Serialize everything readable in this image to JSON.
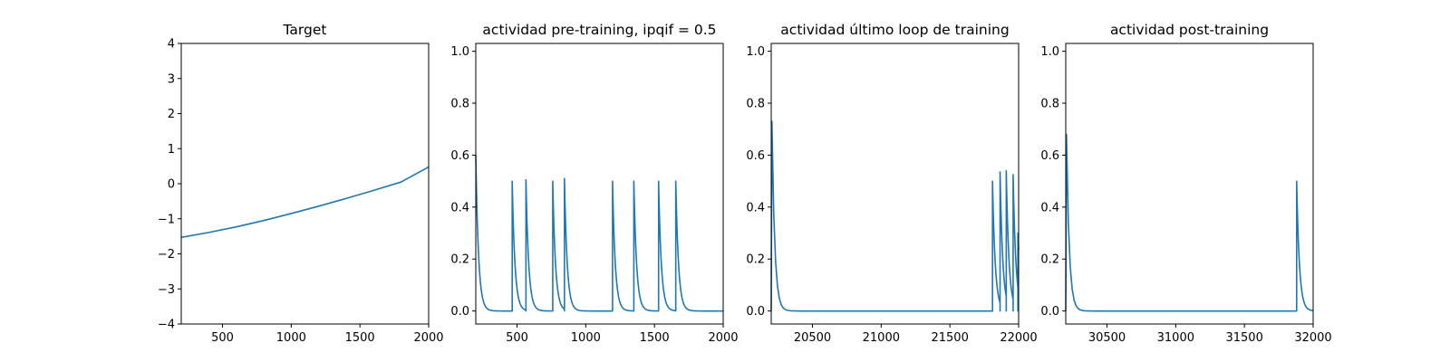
{
  "figure": {
    "line_color": "#1f77b4"
  },
  "chart_data": [
    {
      "type": "line",
      "title": "Target",
      "xlim": [
        200,
        2000
      ],
      "ylim": [
        -4,
        4
      ],
      "xticks": [
        500,
        1000,
        1500,
        2000
      ],
      "yticks": [
        -4,
        -3,
        -2,
        -1,
        0,
        1,
        2,
        3,
        4
      ],
      "x": [
        200,
        400,
        600,
        800,
        1000,
        1200,
        1400,
        1600,
        1800,
        2000
      ],
      "y": [
        -1.53,
        -1.39,
        -1.23,
        -1.05,
        -0.85,
        -0.64,
        -0.42,
        -0.19,
        0.05,
        0.48
      ]
    },
    {
      "type": "line",
      "title": "actividad pre-training, ipqif = 0.5",
      "xlim": [
        200,
        2000
      ],
      "ylim": [
        -0.05,
        1.03
      ],
      "xticks": [
        500,
        1000,
        1500,
        2000
      ],
      "yticks": [
        0.0,
        0.2,
        0.4,
        0.6,
        0.8,
        1.0
      ],
      "spikes": [
        {
          "x": 200,
          "y": 0.6
        },
        {
          "x": 465,
          "y": 0.5
        },
        {
          "x": 565,
          "y": 0.505
        },
        {
          "x": 760,
          "y": 0.5
        },
        {
          "x": 845,
          "y": 0.51
        },
        {
          "x": 1195,
          "y": 0.5
        },
        {
          "x": 1350,
          "y": 0.5
        },
        {
          "x": 1530,
          "y": 0.5
        },
        {
          "x": 1655,
          "y": 0.5
        }
      ],
      "decay_tau": 20
    },
    {
      "type": "line",
      "title": "actividad último loop de training",
      "xlim": [
        20200,
        22000
      ],
      "ylim": [
        -0.05,
        1.03
      ],
      "xticks": [
        20500,
        21000,
        21500,
        22000
      ],
      "yticks": [
        0.0,
        0.2,
        0.4,
        0.6,
        0.8,
        1.0
      ],
      "spikes": [
        {
          "x": 20205,
          "y": 0.73
        },
        {
          "x": 21810,
          "y": 0.5
        },
        {
          "x": 21865,
          "y": 0.535
        },
        {
          "x": 21910,
          "y": 0.54
        },
        {
          "x": 21960,
          "y": 0.525
        },
        {
          "x": 21995,
          "y": 0.3
        }
      ],
      "decay_tau": 20
    },
    {
      "type": "line",
      "title": "actividad post-training",
      "xlim": [
        30200,
        32000
      ],
      "ylim": [
        -0.05,
        1.03
      ],
      "xticks": [
        30500,
        31000,
        31500,
        32000
      ],
      "yticks": [
        0.0,
        0.2,
        0.4,
        0.6,
        0.8,
        1.0
      ],
      "spikes": [
        {
          "x": 30205,
          "y": 0.68
        },
        {
          "x": 31880,
          "y": 0.5
        }
      ],
      "decay_tau": 20
    }
  ]
}
